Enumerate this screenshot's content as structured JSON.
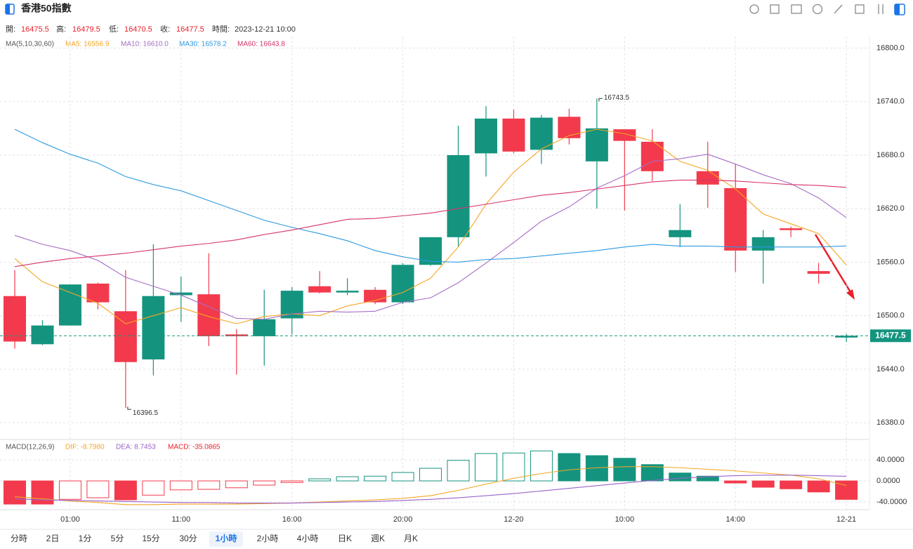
{
  "header": {
    "title": "香港50指數"
  },
  "info": {
    "labels": [
      "開:",
      "高:",
      "低:",
      "收:",
      "時間:"
    ],
    "time": "2023-12-21 10:00"
  },
  "tabs": {
    "items": [
      "分時",
      "2日",
      "1分",
      "5分",
      "15分",
      "30分",
      "1小時",
      "2小時",
      "4小時",
      "日K",
      "週K",
      "月K"
    ],
    "active": 6
  },
  "chart_data": {
    "type": "candlestick",
    "ma_title": "MA(5,10,30,60)",
    "categories": [
      null,
      null,
      "01:00",
      null,
      null,
      null,
      "11:00",
      null,
      null,
      null,
      "16:00",
      null,
      null,
      null,
      "20:00",
      null,
      null,
      null,
      "12-20",
      null,
      null,
      null,
      "10:00",
      null,
      null,
      null,
      "14:00",
      null,
      null,
      null,
      "12-21"
    ],
    "open": [
      16522,
      16468,
      16489,
      16536,
      16505,
      16451,
      16523,
      16524,
      16479,
      16477,
      16497,
      16533,
      16526,
      16529,
      16515,
      16557,
      16588,
      16682,
      16721,
      16686,
      16723,
      16673,
      16709,
      16695,
      16588,
      16662,
      16643,
      16573,
      16598,
      16550,
      16475.5
    ],
    "high": [
      16551,
      16495,
      16535,
      16537,
      16551,
      16580,
      16544,
      16570,
      16485,
      16529,
      16532,
      16550,
      16542,
      16532,
      16559,
      16588,
      16713,
      16735,
      16731,
      16725,
      16732,
      16743.5,
      16709,
      16709,
      16625,
      16695,
      16670,
      16596,
      16600,
      16559,
      16479.5
    ],
    "low": [
      16463,
      16467,
      16489,
      16507,
      16396.5,
      16433,
      16493,
      16466,
      16434,
      16444,
      16479,
      16525,
      16523,
      16513,
      16513,
      16556,
      16577,
      16656,
      16682,
      16670,
      16692,
      16620,
      16618,
      16651,
      16577,
      16621,
      16549,
      16536,
      16588,
      16536,
      16470.5
    ],
    "close": [
      16471,
      16489,
      16535,
      16515,
      16448,
      16522,
      16526,
      16477,
      16477,
      16496,
      16528,
      16526,
      16528,
      16515,
      16557,
      16588,
      16680,
      16721,
      16684,
      16722,
      16699,
      16710,
      16696,
      16662,
      16596,
      16647,
      16573,
      16588,
      16596,
      16547,
      16477.5
    ],
    "up_color": "#14947f",
    "down_color": "#f23a4c",
    "series": [
      {
        "name": "MA5",
        "legend_label": "MA5: 16556.9",
        "color": "#f5a623",
        "values": [
          16564,
          16538,
          16526,
          16514,
          16491,
          16500,
          16509,
          16499,
          16491,
          16499,
          16502,
          16500,
          16511,
          16517,
          16526,
          16542,
          16577,
          16625,
          16661,
          16687,
          16702,
          16709,
          16704,
          16696,
          16673,
          16663,
          16642,
          16614,
          16603,
          16592,
          16556.9
        ]
      },
      {
        "name": "MA10",
        "legend_label": "MA10: 16610.0",
        "color": "#a66cc4",
        "values": [
          16590,
          16580,
          16573,
          16562,
          16543,
          16533,
          16523,
          16510,
          16497,
          16496,
          16502,
          16505,
          16504,
          16505,
          16515,
          16520,
          16537,
          16559,
          16582,
          16606,
          16622,
          16643,
          16657,
          16673,
          16676,
          16681,
          16670,
          16658,
          16648,
          16632,
          16610
        ]
      },
      {
        "name": "MA30",
        "legend_label": "MA30: 16578.2",
        "color": "#2d9ae0",
        "values": [
          16709,
          16694,
          16681,
          16671,
          16656,
          16647,
          16640,
          16629,
          16618,
          16607,
          16599,
          16592,
          16584,
          16573,
          16566,
          16561,
          16560,
          16563,
          16564,
          16567,
          16570,
          16573,
          16577,
          16580,
          16578,
          16578,
          16577,
          16577,
          16577,
          16577,
          16578.2
        ]
      },
      {
        "name": "MA60",
        "legend_label": "MA60: 16643.8",
        "color": "#d6336c",
        "values": [
          16555,
          16560,
          16564,
          16567,
          16570,
          16574,
          16578,
          16581,
          16585,
          16591,
          16596,
          16602,
          16608,
          16609,
          16612,
          16615,
          16620,
          16625,
          16630,
          16635,
          16638,
          16642,
          16646,
          16650,
          16652,
          16652,
          16651,
          16649,
          16647,
          16646,
          16643.8
        ]
      }
    ],
    "ylim": [
      16362,
      16813
    ],
    "yticks": [
      {
        "value": 16380,
        "label": "16380.0"
      },
      {
        "value": 16440,
        "label": "16440.0"
      },
      {
        "value": 16500,
        "label": "16500.0"
      },
      {
        "value": 16560,
        "label": "16560.0"
      },
      {
        "value": 16620,
        "label": "16620.0"
      },
      {
        "value": 16680,
        "label": "16680.0"
      },
      {
        "value": 16740,
        "label": "16740.0"
      },
      {
        "value": 16800,
        "label": "16800.0"
      }
    ],
    "grid": true,
    "macd": {
      "title": "MACD(12,26,9)",
      "dif_label": "DIF: -8.7980",
      "dea_label": "DEA: 8.7453",
      "macd_label": "MACD: -35.0865",
      "dif_color": "#f5a623",
      "dea_color": "#9a63c8",
      "ylim": [
        -49.3,
        76
      ],
      "yticks": [
        {
          "value": -40,
          "label": "-40.0000"
        },
        {
          "value": 0,
          "label": "0.0000"
        },
        {
          "value": 40,
          "label": "40.0000"
        }
      ],
      "hist": [
        -44,
        -44,
        -35,
        -32,
        -36,
        -27,
        -17,
        -16,
        -13,
        -8,
        -3,
        4,
        8,
        9,
        16,
        24,
        39,
        52,
        53,
        57,
        52,
        48,
        43,
        31,
        15,
        9,
        -4,
        -12,
        -15,
        -21,
        -35.0865
      ],
      "dif": [
        -30,
        -34,
        -38,
        -41,
        -45,
        -45,
        -44,
        -44,
        -44,
        -43,
        -42,
        -40,
        -38,
        -36,
        -33,
        -28,
        -18,
        -6,
        5,
        14,
        21,
        25,
        27,
        27,
        25,
        22,
        19,
        15,
        11,
        4,
        -8.798
      ],
      "dea": [
        -34,
        -36,
        -37,
        -38,
        -39,
        -40,
        -41,
        -41,
        -42,
        -42,
        -42,
        -41,
        -40,
        -39,
        -37,
        -35,
        -32,
        -28,
        -24,
        -19,
        -14,
        -9,
        -4,
        1,
        5,
        8,
        10,
        11,
        11,
        10,
        8.7453
      ]
    }
  }
}
